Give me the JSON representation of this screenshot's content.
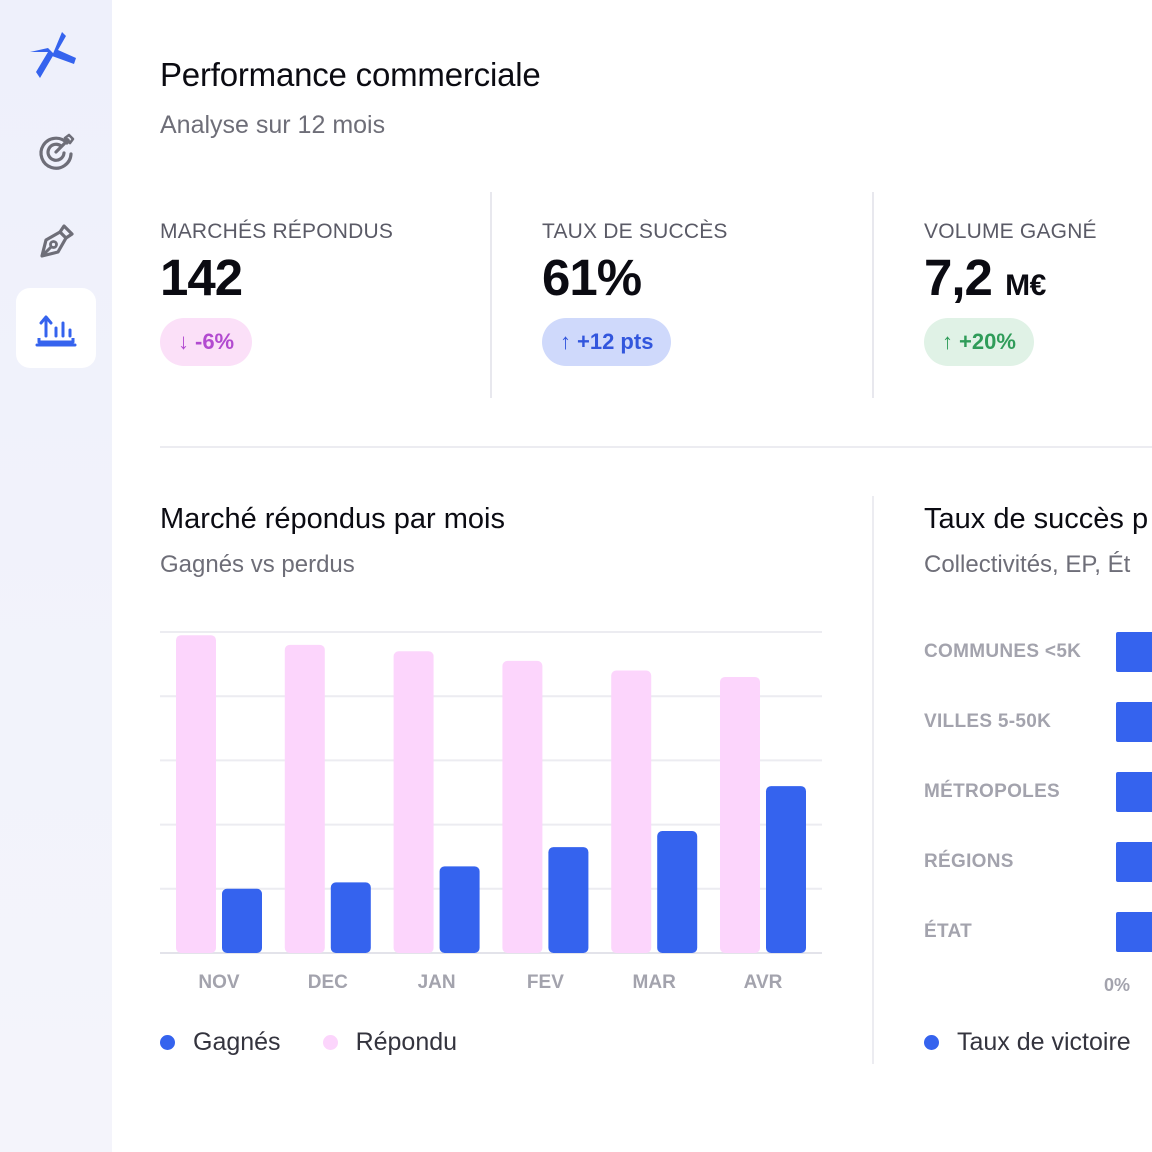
{
  "header": {
    "title": "Performance commerciale",
    "subtitle": "Analyse sur 12 mois"
  },
  "sidebar": {
    "items": [
      {
        "name": "logo",
        "icon": "brand-logo-icon"
      },
      {
        "name": "objectives",
        "icon": "target-icon"
      },
      {
        "name": "writing",
        "icon": "pen-nib-icon"
      },
      {
        "name": "analytics",
        "icon": "chart-upload-icon",
        "active": true
      }
    ]
  },
  "kpis": [
    {
      "label": "MARCHÉS RÉPONDUS",
      "value": "142",
      "unit": "",
      "badge": "-6%",
      "arrow": "↓",
      "trend": "down"
    },
    {
      "label": "TAUX DE SUCCÈS",
      "value": "61%",
      "unit": "",
      "badge": "+12 pts",
      "arrow": "↑",
      "trend": "up"
    },
    {
      "label": "VOLUME GAGNÉ",
      "value": "7,2",
      "unit": "M€",
      "badge": "+20%",
      "arrow": "↑",
      "trend": "up"
    }
  ],
  "bar_section": {
    "title": "Marché répondus par mois",
    "subtitle": "Gagnés vs perdus",
    "legend": {
      "won": "Gagnés",
      "responded": "Répondu"
    }
  },
  "rate_section": {
    "title": "Taux de succès p",
    "subtitle": "Collectivités, EP, Ét",
    "axis_zero": "0%",
    "legend": {
      "rate": "Taux de victoire"
    }
  },
  "colors": {
    "won": "#3563ee",
    "responded": "#fcd5fc",
    "accent": "#3256dd"
  },
  "chart_data": [
    {
      "type": "bar",
      "title": "Marché répondus par mois",
      "subtitle": "Gagnés vs perdus",
      "categories": [
        "NOV",
        "DEC",
        "JAN",
        "FEV",
        "MAR",
        "AVR"
      ],
      "ylim": [
        0,
        100
      ],
      "grid": true,
      "legend": "bottom-left",
      "series": [
        {
          "name": "Répondu",
          "color": "#fcd5fc",
          "values": [
            99,
            96,
            94,
            91,
            88,
            86
          ]
        },
        {
          "name": "Gagnés",
          "color": "#3563ee",
          "values": [
            20,
            22,
            27,
            33,
            38,
            52
          ]
        }
      ]
    },
    {
      "type": "bar",
      "orientation": "horizontal",
      "title": "Taux de succès p",
      "subtitle": "Collectivités, EP, Ét",
      "categories": [
        "COMMUNES <5K",
        "VILLES 5-50K",
        "MÉTROPOLES",
        "RÉGIONS",
        "ÉTAT"
      ],
      "series": [
        {
          "name": "Taux de victoire",
          "color": "#3563ee"
        }
      ]
    }
  ]
}
